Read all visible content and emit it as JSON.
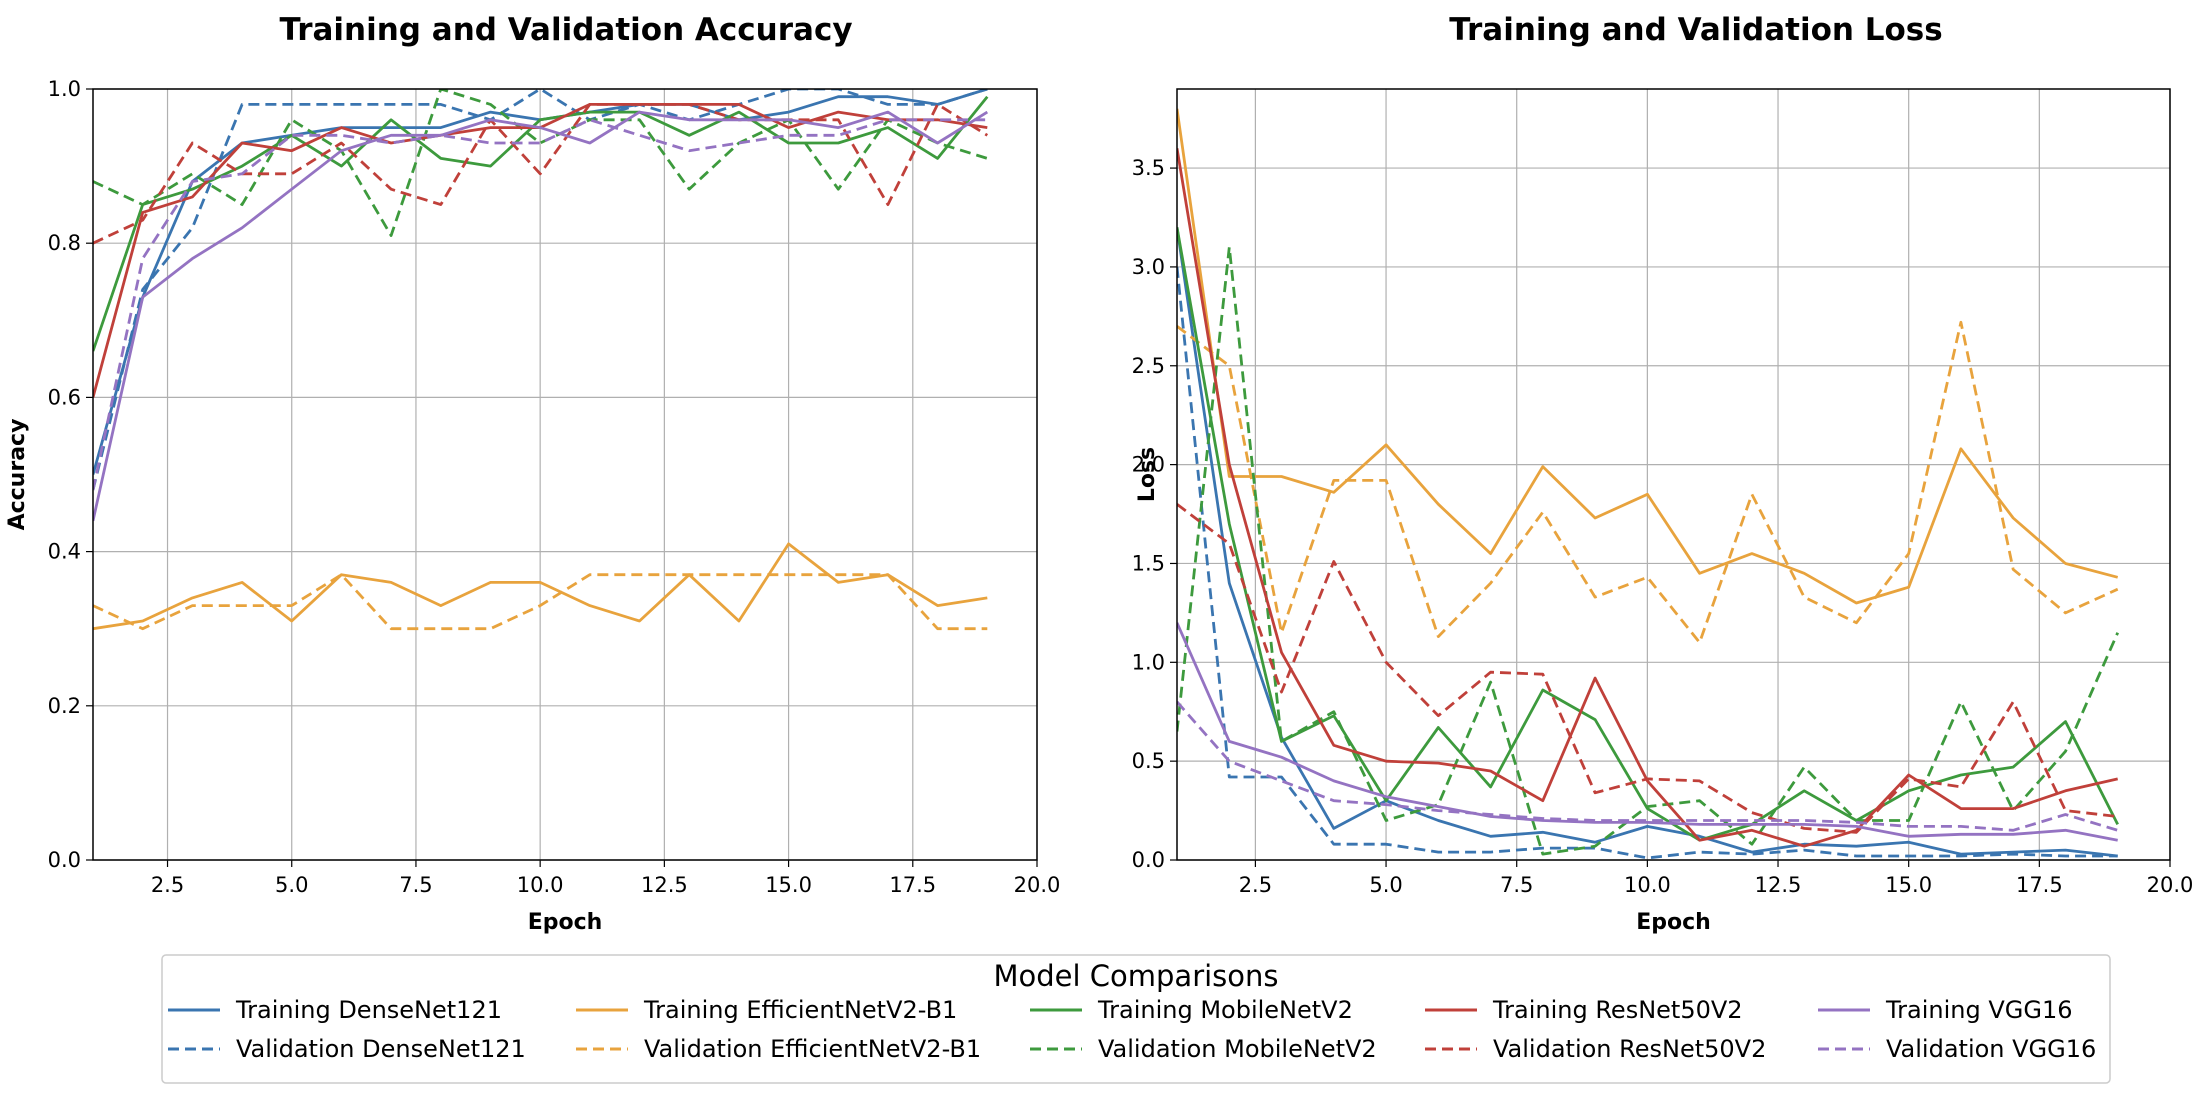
{
  "chart_data": [
    {
      "type": "line",
      "title": "Training and Validation Accuracy",
      "xlabel": "Epoch",
      "ylabel": "Accuracy",
      "xlim": [
        1,
        20
      ],
      "ylim": [
        0,
        1.0
      ],
      "xticks": [
        "2.5",
        "5.0",
        "7.5",
        "10.0",
        "12.5",
        "15.0",
        "17.5",
        "20.0"
      ],
      "yticks": [
        "0.0",
        "0.2",
        "0.4",
        "0.6",
        "0.8",
        "1.0"
      ],
      "grid": true,
      "x": [
        1,
        2,
        3,
        4,
        5,
        6,
        7,
        8,
        9,
        10,
        11,
        12,
        13,
        14,
        15,
        16,
        17,
        18,
        19
      ],
      "series": [
        {
          "name": "Training DenseNet121",
          "style": "solid",
          "color": "#3a75b0",
          "values": [
            0.5,
            0.73,
            0.88,
            0.93,
            0.94,
            0.95,
            0.95,
            0.95,
            0.97,
            0.96,
            0.97,
            0.98,
            0.98,
            0.96,
            0.97,
            0.99,
            0.99,
            0.98,
            1.0
          ]
        },
        {
          "name": "Validation DenseNet121",
          "style": "dashed",
          "color": "#3a75b0",
          "values": [
            0.48,
            0.74,
            0.82,
            0.98,
            0.98,
            0.98,
            0.98,
            0.98,
            0.96,
            1.0,
            0.96,
            0.98,
            0.96,
            0.98,
            1.0,
            1.0,
            0.98,
            0.98,
            1.0
          ]
        },
        {
          "name": "Training EfficientNetV2-B1",
          "style": "solid",
          "color": "#e8a33d",
          "values": [
            0.3,
            0.31,
            0.34,
            0.36,
            0.31,
            0.37,
            0.36,
            0.33,
            0.36,
            0.36,
            0.33,
            0.31,
            0.37,
            0.31,
            0.41,
            0.36,
            0.37,
            0.33,
            0.34
          ]
        },
        {
          "name": "Validation EfficientNetV2-B1",
          "style": "dashed",
          "color": "#e8a33d",
          "values": [
            0.33,
            0.3,
            0.33,
            0.33,
            0.33,
            0.37,
            0.3,
            0.3,
            0.3,
            0.33,
            0.37,
            0.37,
            0.37,
            0.37,
            0.37,
            0.37,
            0.37,
            0.3,
            0.3
          ]
        },
        {
          "name": "Training MobileNetV2",
          "style": "solid",
          "color": "#3d9a3d",
          "values": [
            0.66,
            0.85,
            0.87,
            0.9,
            0.94,
            0.9,
            0.96,
            0.91,
            0.9,
            0.96,
            0.97,
            0.97,
            0.94,
            0.97,
            0.93,
            0.93,
            0.95,
            0.91,
            0.99
          ]
        },
        {
          "name": "Validation MobileNetV2",
          "style": "dashed",
          "color": "#3d9a3d",
          "values": [
            0.88,
            0.85,
            0.89,
            0.85,
            0.96,
            0.92,
            0.81,
            1.0,
            0.98,
            0.93,
            0.96,
            0.96,
            0.87,
            0.93,
            0.96,
            0.87,
            0.96,
            0.93,
            0.91
          ]
        },
        {
          "name": "Training ResNet50V2",
          "style": "solid",
          "color": "#c0403a",
          "values": [
            0.6,
            0.84,
            0.86,
            0.93,
            0.92,
            0.95,
            0.93,
            0.94,
            0.95,
            0.95,
            0.98,
            0.98,
            0.98,
            0.98,
            0.95,
            0.97,
            0.96,
            0.96,
            0.95
          ]
        },
        {
          "name": "Validation ResNet50V2",
          "style": "dashed",
          "color": "#c0403a",
          "values": [
            0.8,
            0.83,
            0.93,
            0.89,
            0.89,
            0.93,
            0.87,
            0.85,
            0.96,
            0.89,
            0.98,
            0.98,
            0.98,
            0.96,
            0.96,
            0.96,
            0.85,
            0.98,
            0.94
          ]
        },
        {
          "name": "Training VGG16",
          "style": "solid",
          "color": "#9473c2",
          "values": [
            0.44,
            0.73,
            0.78,
            0.82,
            0.87,
            0.92,
            0.94,
            0.94,
            0.96,
            0.95,
            0.93,
            0.97,
            0.96,
            0.96,
            0.96,
            0.95,
            0.97,
            0.93,
            0.97
          ]
        },
        {
          "name": "Validation VGG16",
          "style": "dashed",
          "color": "#9473c2",
          "values": [
            0.48,
            0.78,
            0.88,
            0.89,
            0.94,
            0.94,
            0.93,
            0.94,
            0.93,
            0.93,
            0.96,
            0.94,
            0.92,
            0.93,
            0.94,
            0.94,
            0.96,
            0.96,
            0.96
          ]
        }
      ]
    },
    {
      "type": "line",
      "title": "Training and Validation Loss",
      "xlabel": "Epoch",
      "ylabel": "Loss",
      "xlim": [
        1,
        20
      ],
      "ylim": [
        0,
        3.9
      ],
      "xticks": [
        "2.5",
        "5.0",
        "7.5",
        "10.0",
        "12.5",
        "15.0",
        "17.5",
        "20.0"
      ],
      "yticks": [
        "0.0",
        "0.5",
        "1.0",
        "1.5",
        "2.0",
        "2.5",
        "3.0",
        "3.5"
      ],
      "grid": true,
      "x": [
        1,
        2,
        3,
        4,
        5,
        6,
        7,
        8,
        9,
        10,
        11,
        12,
        13,
        14,
        15,
        16,
        17,
        18,
        19
      ],
      "series": [
        {
          "name": "Training DenseNet121",
          "style": "solid",
          "color": "#3a75b0",
          "values": [
            3.2,
            1.4,
            0.62,
            0.16,
            0.3,
            0.2,
            0.12,
            0.14,
            0.09,
            0.17,
            0.12,
            0.04,
            0.08,
            0.07,
            0.09,
            0.03,
            0.04,
            0.05,
            0.02
          ]
        },
        {
          "name": "Validation DenseNet121",
          "style": "dashed",
          "color": "#3a75b0",
          "values": [
            3.0,
            0.42,
            0.42,
            0.08,
            0.08,
            0.04,
            0.04,
            0.06,
            0.06,
            0.01,
            0.04,
            0.03,
            0.05,
            0.02,
            0.02,
            0.02,
            0.03,
            0.02,
            0.02
          ]
        },
        {
          "name": "Training EfficientNetV2-B1",
          "style": "solid",
          "color": "#e8a33d",
          "values": [
            3.8,
            1.94,
            1.94,
            1.86,
            2.1,
            1.8,
            1.55,
            1.99,
            1.73,
            1.85,
            1.45,
            1.55,
            1.45,
            1.3,
            1.38,
            2.08,
            1.73,
            1.5,
            1.43
          ]
        },
        {
          "name": "Validation EfficientNetV2-B1",
          "style": "dashed",
          "color": "#e8a33d",
          "values": [
            2.7,
            2.5,
            1.15,
            1.92,
            1.92,
            1.13,
            1.4,
            1.76,
            1.33,
            1.43,
            1.1,
            1.85,
            1.33,
            1.2,
            1.55,
            2.72,
            1.47,
            1.25,
            1.37
          ]
        },
        {
          "name": "Training MobileNetV2",
          "style": "solid",
          "color": "#3d9a3d",
          "values": [
            3.2,
            1.7,
            0.6,
            0.73,
            0.3,
            0.67,
            0.37,
            0.86,
            0.71,
            0.26,
            0.1,
            0.18,
            0.35,
            0.2,
            0.35,
            0.43,
            0.47,
            0.7,
            0.18
          ]
        },
        {
          "name": "Validation MobileNetV2",
          "style": "dashed",
          "color": "#3d9a3d",
          "values": [
            0.65,
            3.1,
            0.6,
            0.75,
            0.2,
            0.28,
            0.9,
            0.03,
            0.07,
            0.27,
            0.3,
            0.08,
            0.47,
            0.2,
            0.2,
            0.8,
            0.25,
            0.55,
            1.15
          ]
        },
        {
          "name": "Training ResNet50V2",
          "style": "solid",
          "color": "#c0403a",
          "values": [
            3.6,
            2.0,
            1.05,
            0.58,
            0.5,
            0.49,
            0.45,
            0.3,
            0.92,
            0.4,
            0.1,
            0.15,
            0.07,
            0.15,
            0.43,
            0.26,
            0.26,
            0.35,
            0.41
          ]
        },
        {
          "name": "Validation ResNet50V2",
          "style": "dashed",
          "color": "#c0403a",
          "values": [
            1.8,
            1.6,
            0.85,
            1.51,
            1.0,
            0.73,
            0.95,
            0.94,
            0.34,
            0.41,
            0.4,
            0.24,
            0.16,
            0.14,
            0.41,
            0.37,
            0.8,
            0.25,
            0.22
          ]
        },
        {
          "name": "Training VGG16",
          "style": "solid",
          "color": "#9473c2",
          "values": [
            1.2,
            0.6,
            0.52,
            0.4,
            0.32,
            0.27,
            0.22,
            0.2,
            0.19,
            0.19,
            0.18,
            0.18,
            0.18,
            0.17,
            0.12,
            0.13,
            0.13,
            0.15,
            0.1
          ]
        },
        {
          "name": "Validation VGG16",
          "style": "dashed",
          "color": "#9473c2",
          "values": [
            0.8,
            0.5,
            0.4,
            0.3,
            0.28,
            0.25,
            0.23,
            0.21,
            0.2,
            0.2,
            0.2,
            0.2,
            0.2,
            0.19,
            0.17,
            0.17,
            0.15,
            0.23,
            0.15
          ]
        }
      ]
    }
  ],
  "legend": {
    "title": "Model Comparisons",
    "placement": "bottom-center",
    "entries": [
      {
        "label": "Training DenseNet121",
        "color": "#3a75b0",
        "style": "solid"
      },
      {
        "label": "Training EfficientNetV2-B1",
        "color": "#e8a33d",
        "style": "solid"
      },
      {
        "label": "Training MobileNetV2",
        "color": "#3d9a3d",
        "style": "solid"
      },
      {
        "label": "Training ResNet50V2",
        "color": "#c0403a",
        "style": "solid"
      },
      {
        "label": "Training VGG16",
        "color": "#9473c2",
        "style": "solid"
      },
      {
        "label": "Validation DenseNet121",
        "color": "#3a75b0",
        "style": "dashed"
      },
      {
        "label": "Validation EfficientNetV2-B1",
        "color": "#e8a33d",
        "style": "dashed"
      },
      {
        "label": "Validation MobileNetV2",
        "color": "#3d9a3d",
        "style": "dashed"
      },
      {
        "label": "Validation ResNet50V2",
        "color": "#c0403a",
        "style": "dashed"
      },
      {
        "label": "Validation VGG16",
        "color": "#9473c2",
        "style": "dashed"
      }
    ]
  }
}
